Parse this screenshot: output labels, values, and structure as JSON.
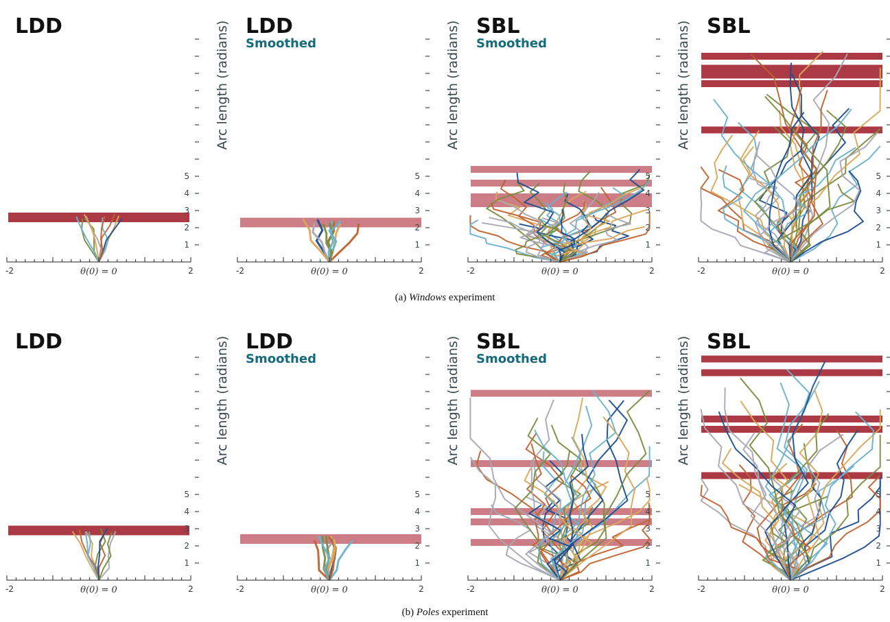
{
  "colors": {
    "bar": "#a32530",
    "bar_smoothed": "#c46670",
    "subtitle": "#146b7c",
    "axis_text": "#38484f",
    "series": [
      "#c0622f",
      "#d9a759",
      "#7a8c3f",
      "#6cb1cc",
      "#1d4e8f",
      "#a7a8b4"
    ]
  },
  "captions": [
    {
      "prefix": "(a) ",
      "emph": "Windows",
      "suffix": " experiment"
    },
    {
      "prefix": "(b) ",
      "emph": "Poles",
      "suffix": " experiment"
    }
  ],
  "chart_data": [
    {
      "type": "line",
      "title": "LDD",
      "subtitle": "",
      "xlabel": "θ(0) = 0",
      "ylabel": "",
      "xlim": [
        -2,
        2
      ],
      "x_ticks": [
        "-2",
        "2"
      ],
      "y_ticks": [
        "1",
        "2",
        "3",
        "4",
        "5"
      ],
      "bars": [
        2.6
      ],
      "note": "hand-drawn tree of trajectories from θ(0)=0"
    },
    {
      "type": "line",
      "title": "LDD",
      "subtitle": "Smoothed",
      "xlabel": "θ(0) = 0",
      "ylabel": "Arc length (radians)",
      "xlim": [
        -2,
        2
      ],
      "x_ticks": [
        "-2",
        "2"
      ],
      "y_ticks": [
        "1",
        "2",
        "3",
        "4",
        "5"
      ],
      "bars": [
        2.3
      ]
    },
    {
      "type": "line",
      "title": "SBL",
      "subtitle": "Smoothed",
      "xlabel": "θ(0) = 0",
      "ylabel": "Arc length (radians)",
      "xlim": [
        -2,
        2
      ],
      "x_ticks": [
        "-2",
        "2"
      ],
      "y_ticks": [
        "1",
        "2",
        "3",
        "4",
        "5"
      ],
      "bars": [
        3.4,
        3.8,
        4.6,
        5.4
      ]
    },
    {
      "type": "line",
      "title": "SBL",
      "subtitle": "",
      "xlabel": "θ(0) = 0",
      "ylabel": "Arc length (radians)",
      "xlim": [
        -2,
        2
      ],
      "x_ticks": [
        "-2",
        "2"
      ],
      "y_ticks": [
        "1",
        "2",
        "3",
        "4",
        "5"
      ],
      "bars": [
        7.7,
        10.4,
        10.9,
        11.3,
        12.0
      ]
    },
    {
      "type": "line",
      "title": "LDD",
      "subtitle": "",
      "xlabel": "θ(0) = 0",
      "ylabel": "",
      "xlim": [
        -2,
        2
      ],
      "x_ticks": [
        "-2",
        "2"
      ],
      "y_ticks": [
        "1",
        "2",
        "3",
        "4",
        "5"
      ],
      "bars": [
        2.9
      ]
    },
    {
      "type": "line",
      "title": "LDD",
      "subtitle": "Smoothed",
      "xlabel": "θ(0) = 0",
      "ylabel": "Arc length (radians)",
      "xlim": [
        -2,
        2
      ],
      "x_ticks": [
        "-2",
        "2"
      ],
      "y_ticks": [
        "1",
        "2",
        "3",
        "4",
        "5"
      ],
      "bars": [
        2.4
      ]
    },
    {
      "type": "line",
      "title": "SBL",
      "subtitle": "Smoothed",
      "xlabel": "θ(0) = 0",
      "ylabel": "Arc length (radians)",
      "xlim": [
        -2,
        2
      ],
      "x_ticks": [
        "-2",
        "2"
      ],
      "y_ticks": [
        "1",
        "2",
        "3",
        "4",
        "5"
      ],
      "bars": [
        2.2,
        3.4,
        4.0,
        6.8,
        10.9
      ]
    },
    {
      "type": "line",
      "title": "SBL",
      "subtitle": "",
      "xlabel": "θ(0) = 0",
      "ylabel": "Arc length (radians)",
      "xlim": [
        -2,
        2
      ],
      "x_ticks": [
        "-2",
        "2"
      ],
      "y_ticks": [
        "1",
        "2",
        "3",
        "4",
        "5"
      ],
      "bars": [
        6.1,
        8.8,
        9.4,
        12.1,
        12.9
      ]
    }
  ]
}
